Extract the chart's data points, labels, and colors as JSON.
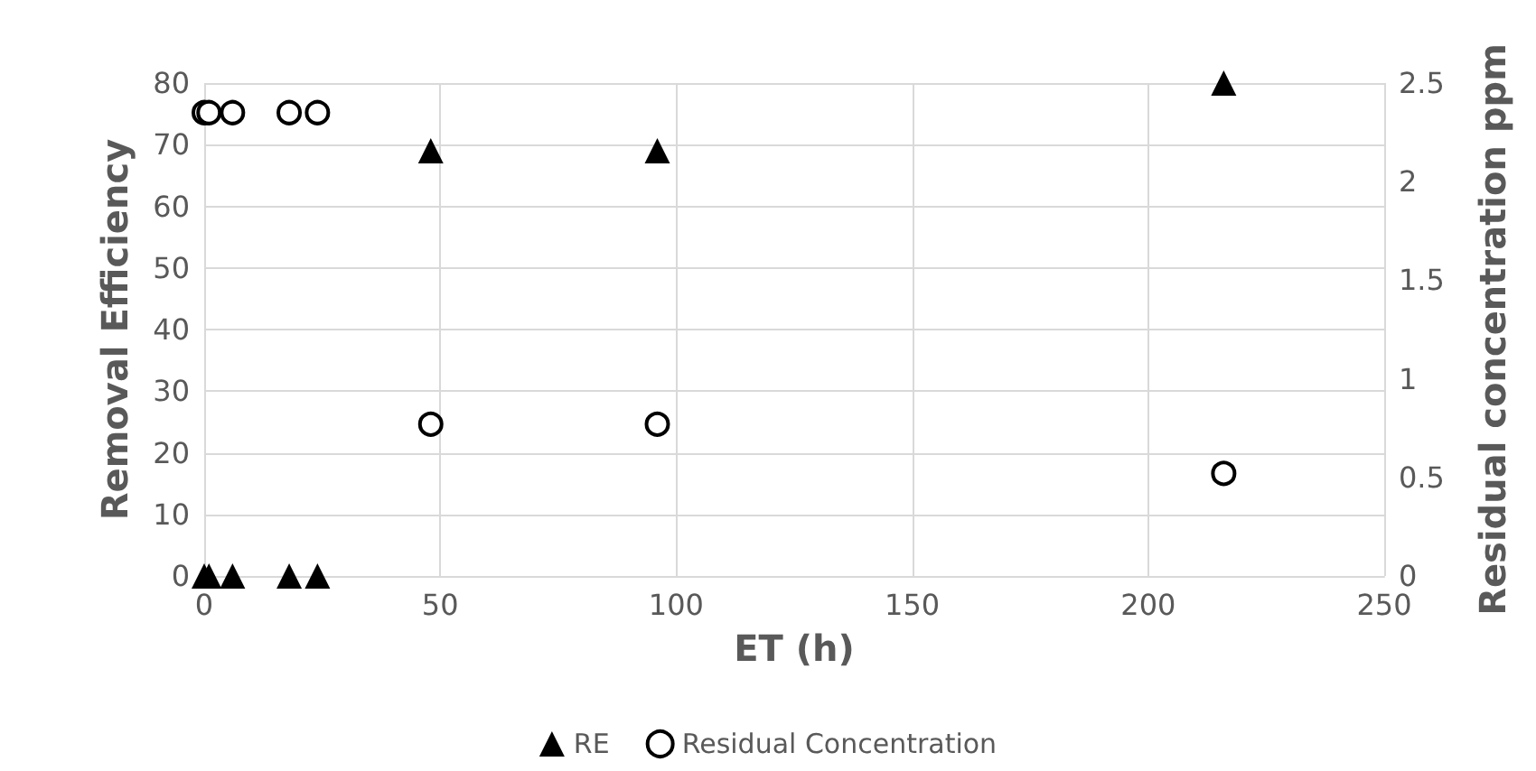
{
  "chart_data": {
    "type": "scatter",
    "xlabel": "ET (h)",
    "ylabel": "Removal Efficiency",
    "y2label": "Residual concentration ppm",
    "x": [
      0,
      1,
      6,
      18,
      24,
      48,
      96,
      216
    ],
    "series": [
      {
        "name": "RE",
        "color": "#000000",
        "marker": "triangle",
        "values": [
          0,
          0,
          0,
          0,
          0,
          69,
          69,
          80
        ]
      },
      {
        "name": "Residual Concentration",
        "color": "#000000",
        "marker": "circle",
        "axis": "y2",
        "values": [
          2.35,
          2.35,
          2.35,
          2.35,
          2.35,
          0.77,
          0.77,
          0.52
        ]
      }
    ],
    "xlim": [
      0,
      250
    ],
    "xticks": [
      0,
      50,
      100,
      150,
      200,
      250
    ],
    "ylim": [
      0,
      80
    ],
    "yticks": [
      0,
      10,
      20,
      30,
      40,
      50,
      60,
      70,
      80
    ],
    "y2lim": [
      0,
      2.5
    ],
    "y2ticks": [
      0,
      0.5,
      1,
      1.5,
      2,
      2.5
    ],
    "grid": true,
    "legend": "bottom"
  }
}
